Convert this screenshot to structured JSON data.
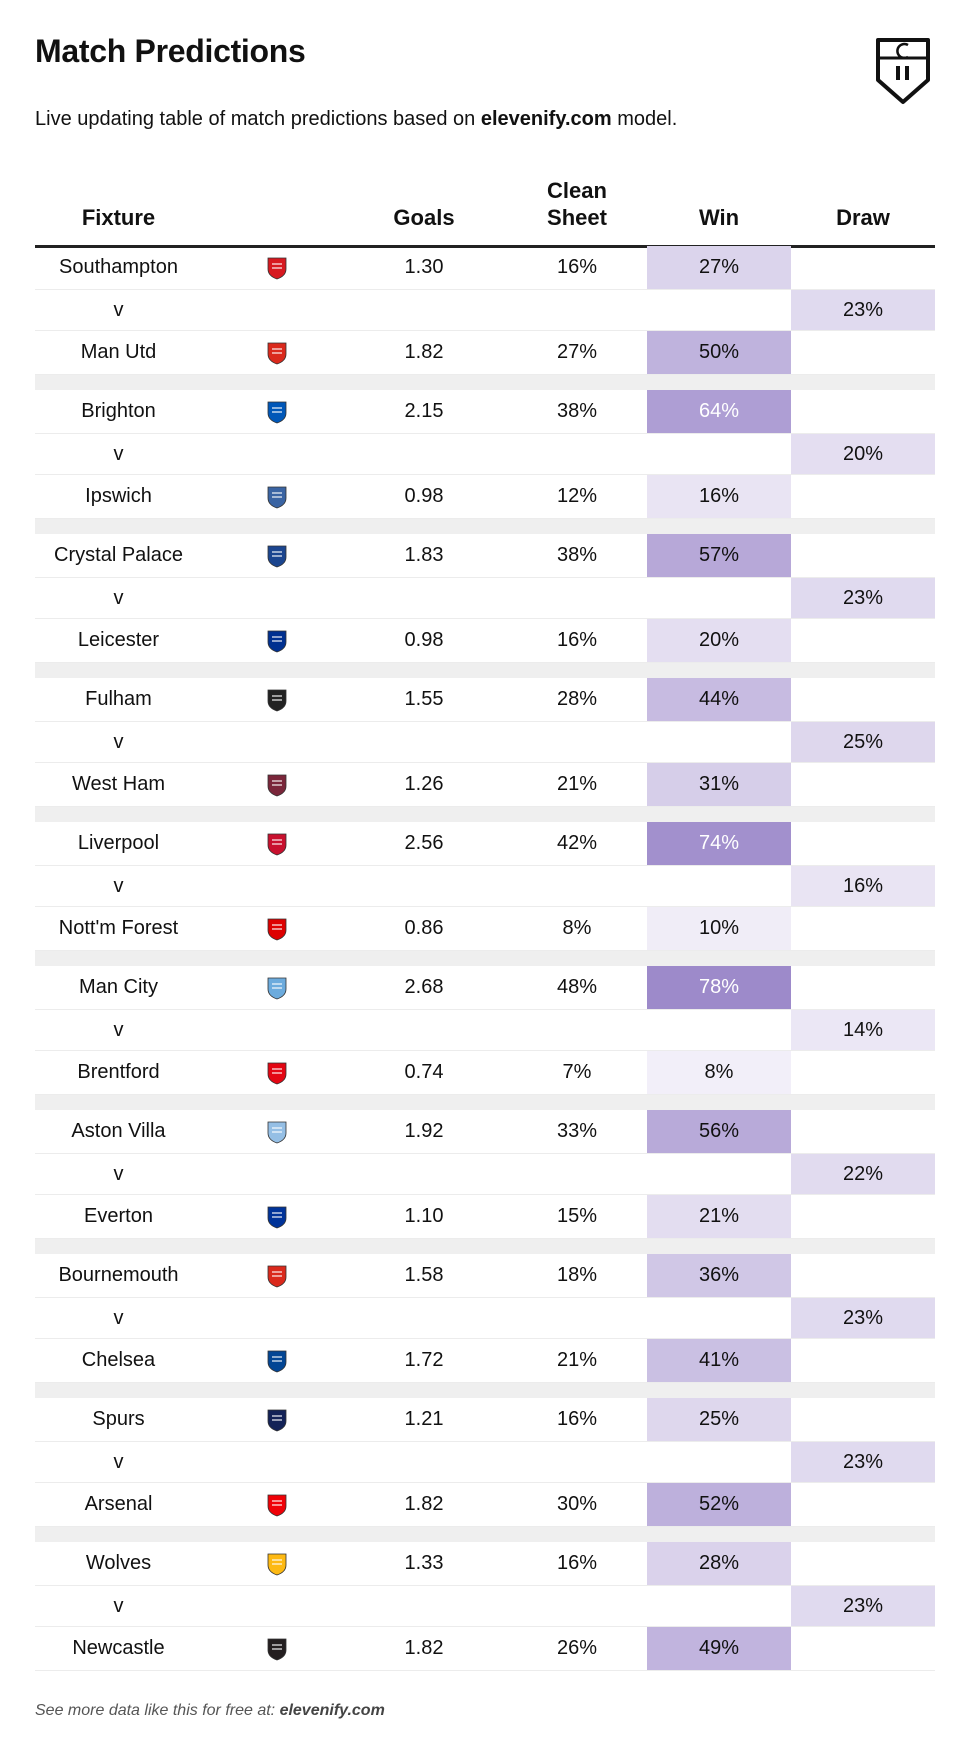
{
  "title": "Match Predictions",
  "subtitle": {
    "before": "Live updating table of match predictions based on ",
    "brand": "elevenify.com",
    "after": " model."
  },
  "columns": {
    "fixture": "Fixture",
    "goals": "Goals",
    "clean_sheet_line1": "Clean",
    "clean_sheet_line2": "Sheet",
    "win": "Win",
    "draw": "Draw"
  },
  "vs_label": "v",
  "colors": {
    "win_high": "#9b87c9",
    "draw_low": "#f3f0fa"
  },
  "matches": [
    {
      "home": {
        "team": "Southampton",
        "crest": "southampton-crest-icon",
        "crest_color": "#d71920",
        "goals": "1.30",
        "clean_sheet": "16%",
        "win": "27%",
        "win_pct": 27
      },
      "draw": "23%",
      "draw_pct": 23,
      "away": {
        "team": "Man Utd",
        "crest": "man-utd-crest-icon",
        "crest_color": "#da291c",
        "goals": "1.82",
        "clean_sheet": "27%",
        "win": "50%",
        "win_pct": 50
      }
    },
    {
      "home": {
        "team": "Brighton",
        "crest": "brighton-crest-icon",
        "crest_color": "#0057b8",
        "goals": "2.15",
        "clean_sheet": "38%",
        "win": "64%",
        "win_pct": 64
      },
      "draw": "20%",
      "draw_pct": 20,
      "away": {
        "team": "Ipswich",
        "crest": "ipswich-crest-icon",
        "crest_color": "#3a64a3",
        "goals": "0.98",
        "clean_sheet": "12%",
        "win": "16%",
        "win_pct": 16
      }
    },
    {
      "home": {
        "team": "Crystal Palace",
        "crest": "crystal-palace-crest-icon",
        "crest_color": "#1b458f",
        "goals": "1.83",
        "clean_sheet": "38%",
        "win": "57%",
        "win_pct": 57
      },
      "draw": "23%",
      "draw_pct": 23,
      "away": {
        "team": "Leicester",
        "crest": "leicester-crest-icon",
        "crest_color": "#003090",
        "goals": "0.98",
        "clean_sheet": "16%",
        "win": "20%",
        "win_pct": 20
      }
    },
    {
      "home": {
        "team": "Fulham",
        "crest": "fulham-crest-icon",
        "crest_color": "#222222",
        "goals": "1.55",
        "clean_sheet": "28%",
        "win": "44%",
        "win_pct": 44
      },
      "draw": "25%",
      "draw_pct": 25,
      "away": {
        "team": "West Ham",
        "crest": "west-ham-crest-icon",
        "crest_color": "#7a263a",
        "goals": "1.26",
        "clean_sheet": "21%",
        "win": "31%",
        "win_pct": 31
      }
    },
    {
      "home": {
        "team": "Liverpool",
        "crest": "liverpool-crest-icon",
        "crest_color": "#c8102e",
        "goals": "2.56",
        "clean_sheet": "42%",
        "win": "74%",
        "win_pct": 74
      },
      "draw": "16%",
      "draw_pct": 16,
      "away": {
        "team": "Nott'm Forest",
        "crest": "nottm-forest-crest-icon",
        "crest_color": "#dd0000",
        "goals": "0.86",
        "clean_sheet": "8%",
        "win": "10%",
        "win_pct": 10
      }
    },
    {
      "home": {
        "team": "Man City",
        "crest": "man-city-crest-icon",
        "crest_color": "#6cabdd",
        "goals": "2.68",
        "clean_sheet": "48%",
        "win": "78%",
        "win_pct": 78
      },
      "draw": "14%",
      "draw_pct": 14,
      "away": {
        "team": "Brentford",
        "crest": "brentford-crest-icon",
        "crest_color": "#e30613",
        "goals": "0.74",
        "clean_sheet": "7%",
        "win": "8%",
        "win_pct": 8
      }
    },
    {
      "home": {
        "team": "Aston Villa",
        "crest": "aston-villa-crest-icon",
        "crest_color": "#95bfe5",
        "goals": "1.92",
        "clean_sheet": "33%",
        "win": "56%",
        "win_pct": 56
      },
      "draw": "22%",
      "draw_pct": 22,
      "away": {
        "team": "Everton",
        "crest": "everton-crest-icon",
        "crest_color": "#003399",
        "goals": "1.10",
        "clean_sheet": "15%",
        "win": "21%",
        "win_pct": 21
      }
    },
    {
      "home": {
        "team": "Bournemouth",
        "crest": "bournemouth-crest-icon",
        "crest_color": "#da291c",
        "goals": "1.58",
        "clean_sheet": "18%",
        "win": "36%",
        "win_pct": 36
      },
      "draw": "23%",
      "draw_pct": 23,
      "away": {
        "team": "Chelsea",
        "crest": "chelsea-crest-icon",
        "crest_color": "#034694",
        "goals": "1.72",
        "clean_sheet": "21%",
        "win": "41%",
        "win_pct": 41
      }
    },
    {
      "home": {
        "team": "Spurs",
        "crest": "spurs-crest-icon",
        "crest_color": "#132257",
        "goals": "1.21",
        "clean_sheet": "16%",
        "win": "25%",
        "win_pct": 25
      },
      "draw": "23%",
      "draw_pct": 23,
      "away": {
        "team": "Arsenal",
        "crest": "arsenal-crest-icon",
        "crest_color": "#ef0107",
        "goals": "1.82",
        "clean_sheet": "30%",
        "win": "52%",
        "win_pct": 52
      }
    },
    {
      "home": {
        "team": "Wolves",
        "crest": "wolves-crest-icon",
        "crest_color": "#fdb913",
        "goals": "1.33",
        "clean_sheet": "16%",
        "win": "28%",
        "win_pct": 28
      },
      "draw": "23%",
      "draw_pct": 23,
      "away": {
        "team": "Newcastle",
        "crest": "newcastle-crest-icon",
        "crest_color": "#241f20",
        "goals": "1.82",
        "clean_sheet": "26%",
        "win": "49%",
        "win_pct": 49
      }
    }
  ],
  "footer": {
    "before": "See more data like this for free at: ",
    "brand": "elevenify.com"
  }
}
